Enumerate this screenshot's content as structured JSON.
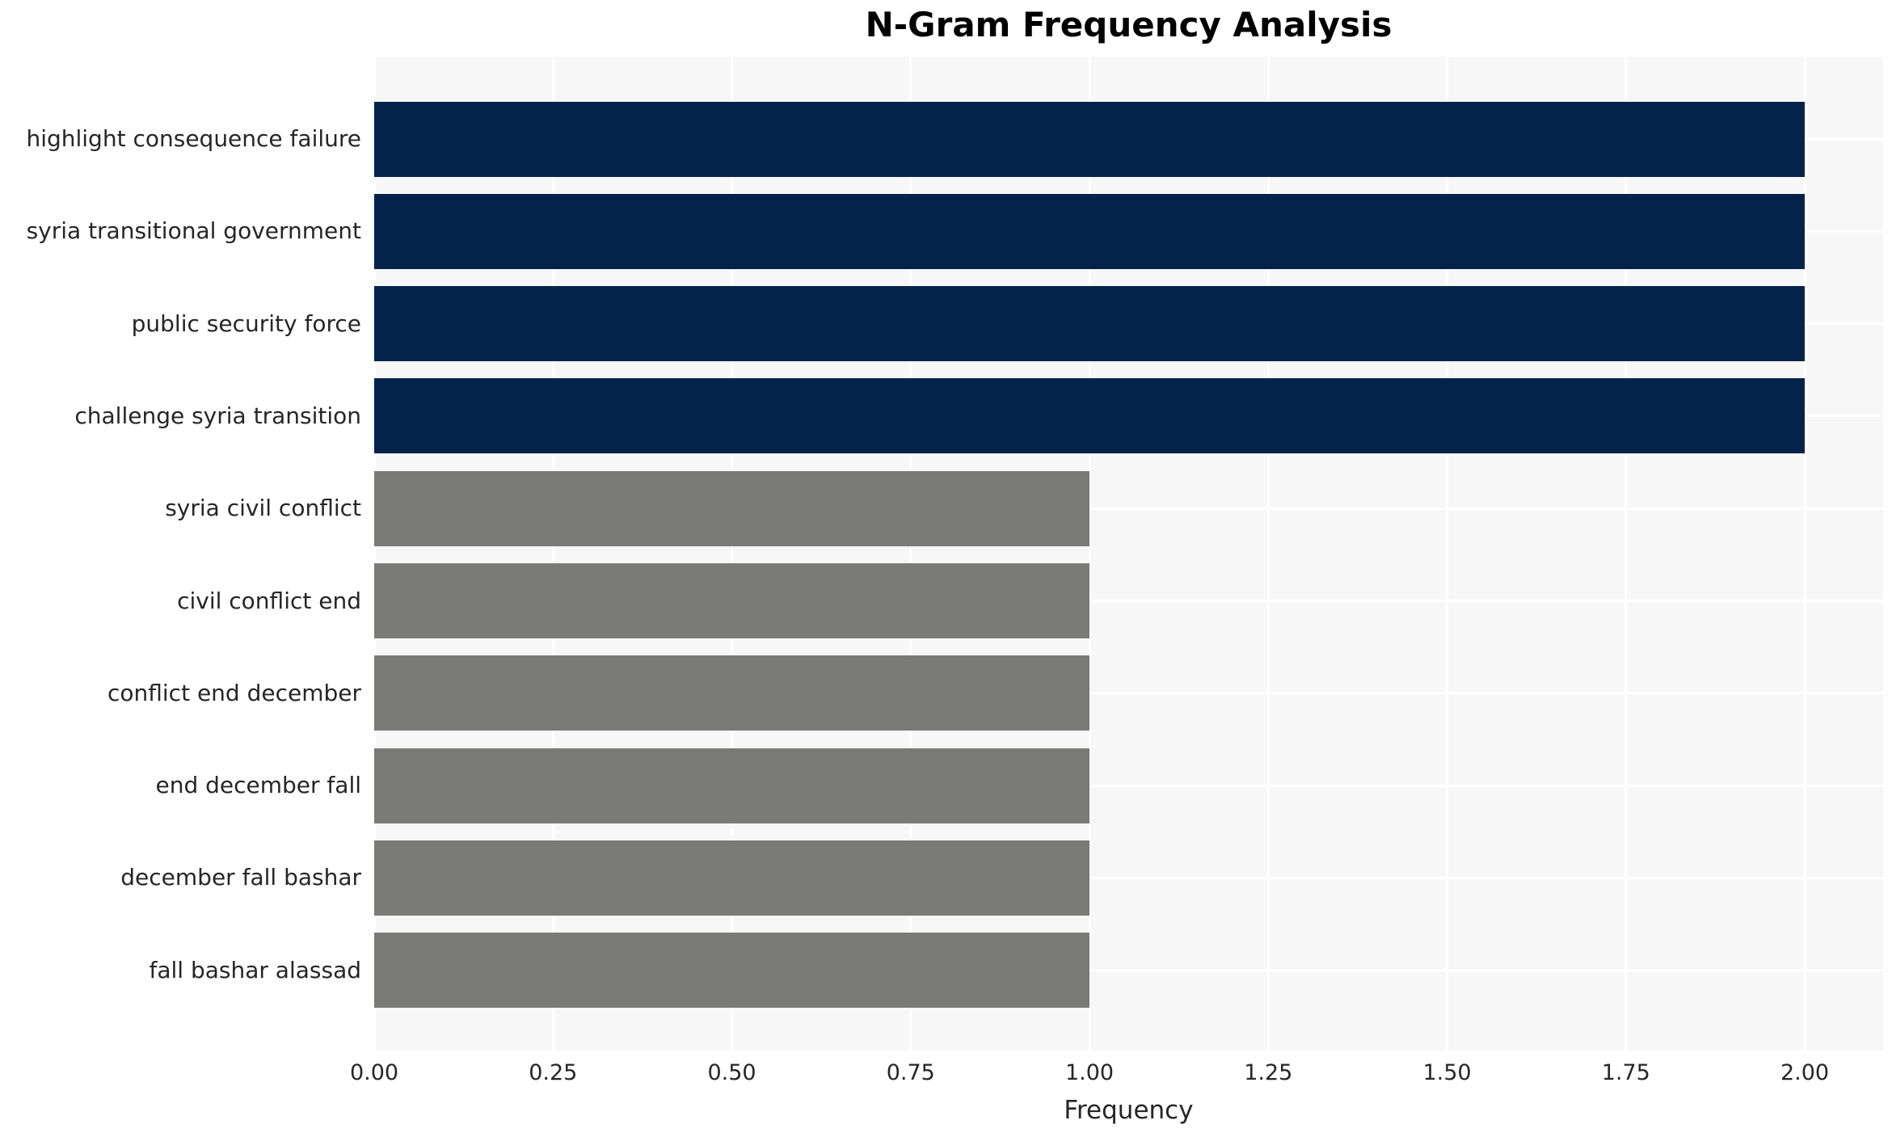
{
  "chart_data": {
    "type": "bar",
    "orientation": "horizontal",
    "title": "N-Gram Frequency Analysis",
    "xlabel": "Frequency",
    "ylabel": "",
    "categories": [
      "highlight consequence failure",
      "syria transitional government",
      "public security force",
      "challenge syria transition",
      "syria civil conflict",
      "civil conflict end",
      "conflict end december",
      "end december fall",
      "december fall bashar",
      "fall bashar alassad"
    ],
    "values": [
      2,
      2,
      2,
      2,
      1,
      1,
      1,
      1,
      1,
      1
    ],
    "bar_colors": [
      "#03234b",
      "#03234b",
      "#03234b",
      "#03234b",
      "#7a7a78",
      "#7a7a78",
      "#7a7a78",
      "#7a7a78",
      "#7a7a78",
      "#7a7a78"
    ],
    "xlim": [
      0,
      2.11
    ],
    "xticks": [
      0.0,
      0.25,
      0.5,
      0.75,
      1.0,
      1.25,
      1.5,
      1.75,
      2.0
    ],
    "xtick_labels": [
      "0.00",
      "0.25",
      "0.50",
      "0.75",
      "1.00",
      "1.25",
      "1.50",
      "1.75",
      "2.00"
    ],
    "grid": true,
    "legend": false,
    "colors": {
      "high_freq_bar": "#03234b",
      "low_freq_bar": "#7a7a78",
      "plot_background": "#f7f7f7",
      "gridline": "#ffffff",
      "tick_text": "#262626",
      "title_text": "#000000"
    }
  }
}
